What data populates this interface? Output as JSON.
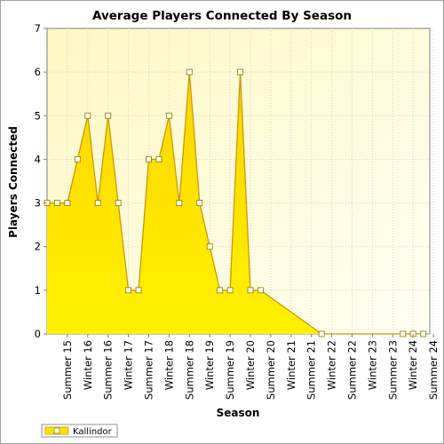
{
  "chart_data": {
    "type": "area",
    "title": "Average Players Connected By Season",
    "xlabel": "Season",
    "ylabel": "Players Connected",
    "ylim": [
      0,
      7
    ],
    "yticks": [
      0,
      1,
      2,
      3,
      4,
      5,
      6,
      7
    ],
    "categories": [
      "Summer 15",
      "Winter 16",
      "Summer 16",
      "Winter 17",
      "Summer 17",
      "Winter 18",
      "Summer 18",
      "Winter 19",
      "Summer 19",
      "Winter 20",
      "Summer 20",
      "Winter 21",
      "Summer 21",
      "Winter 22",
      "Summer 22",
      "Winter 23",
      "Summer 23",
      "Winter 24",
      "Summer 24"
    ],
    "grid": true,
    "legend": "bottom-left",
    "series": [
      {
        "name": "Kallindor",
        "color": "#ffe100",
        "points": [
          {
            "x": 0.0,
            "y": 3
          },
          {
            "x": 0.5,
            "y": 3
          },
          {
            "x": 1.0,
            "y": 3
          },
          {
            "x": 1.5,
            "y": 4
          },
          {
            "x": 2.0,
            "y": 5
          },
          {
            "x": 2.5,
            "y": 3
          },
          {
            "x": 3.0,
            "y": 5
          },
          {
            "x": 3.5,
            "y": 3
          },
          {
            "x": 4.0,
            "y": 1
          },
          {
            "x": 4.5,
            "y": 1
          },
          {
            "x": 5.0,
            "y": 4
          },
          {
            "x": 5.5,
            "y": 4
          },
          {
            "x": 6.0,
            "y": 5
          },
          {
            "x": 6.5,
            "y": 3
          },
          {
            "x": 7.0,
            "y": 6
          },
          {
            "x": 7.5,
            "y": 3
          },
          {
            "x": 8.0,
            "y": 2
          },
          {
            "x": 8.5,
            "y": 1
          },
          {
            "x": 9.0,
            "y": 1
          },
          {
            "x": 9.5,
            "y": 6
          },
          {
            "x": 10.0,
            "y": 1
          },
          {
            "x": 10.5,
            "y": 1
          },
          {
            "x": 13.5,
            "y": 0
          },
          {
            "x": 17.5,
            "y": 0
          },
          {
            "x": 18.0,
            "y": 0
          },
          {
            "x": 18.5,
            "y": 0
          }
        ]
      }
    ]
  }
}
